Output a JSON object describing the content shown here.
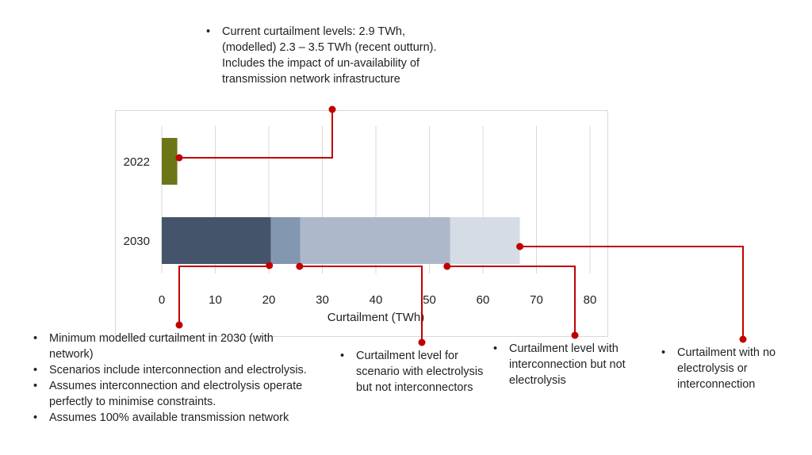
{
  "chart_data": {
    "type": "bar",
    "orientation": "horizontal",
    "stacked": true,
    "categories": [
      "2022",
      "2030"
    ],
    "xlabel": "Curtailment (TWh)",
    "xlim": [
      0,
      80
    ],
    "xticks": [
      "0",
      "10",
      "20",
      "30",
      "40",
      "50",
      "60",
      "70",
      "80"
    ],
    "grid": true,
    "series_2022": {
      "value": 2.9,
      "color": "#6b7617"
    },
    "series_2030_levels": [
      {
        "value": 20.4,
        "color": "#44546a"
      },
      {
        "value": 25.9,
        "color": "#8497b0"
      },
      {
        "value": 53.9,
        "color": "#adb9ca"
      },
      {
        "value": 66.9,
        "color": "#d6dce5"
      }
    ],
    "callout_color": "#c00000"
  },
  "annotations": {
    "current": [
      "Current curtailment levels: 2.9 TWh, (modelled) 2.3 – 3.5 TWh (recent outturn). Includes the impact of un-availability of transmission network infrastructure"
    ],
    "minimum": [
      "Minimum modelled curtailment in 2030 (with network)",
      "Scenarios include interconnection and electrolysis.",
      "Assumes interconnection and electrolysis operate perfectly to minimise constraints.",
      "Assumes 100% available transmission network"
    ],
    "electrolysis": [
      "Curtailment level for scenario with electrolysis but not interconnectors"
    ],
    "interconnection": [
      "Curtailment level with interconnection but not electrolysis"
    ],
    "none": [
      "Curtailment with no electrolysis or interconnection"
    ]
  }
}
